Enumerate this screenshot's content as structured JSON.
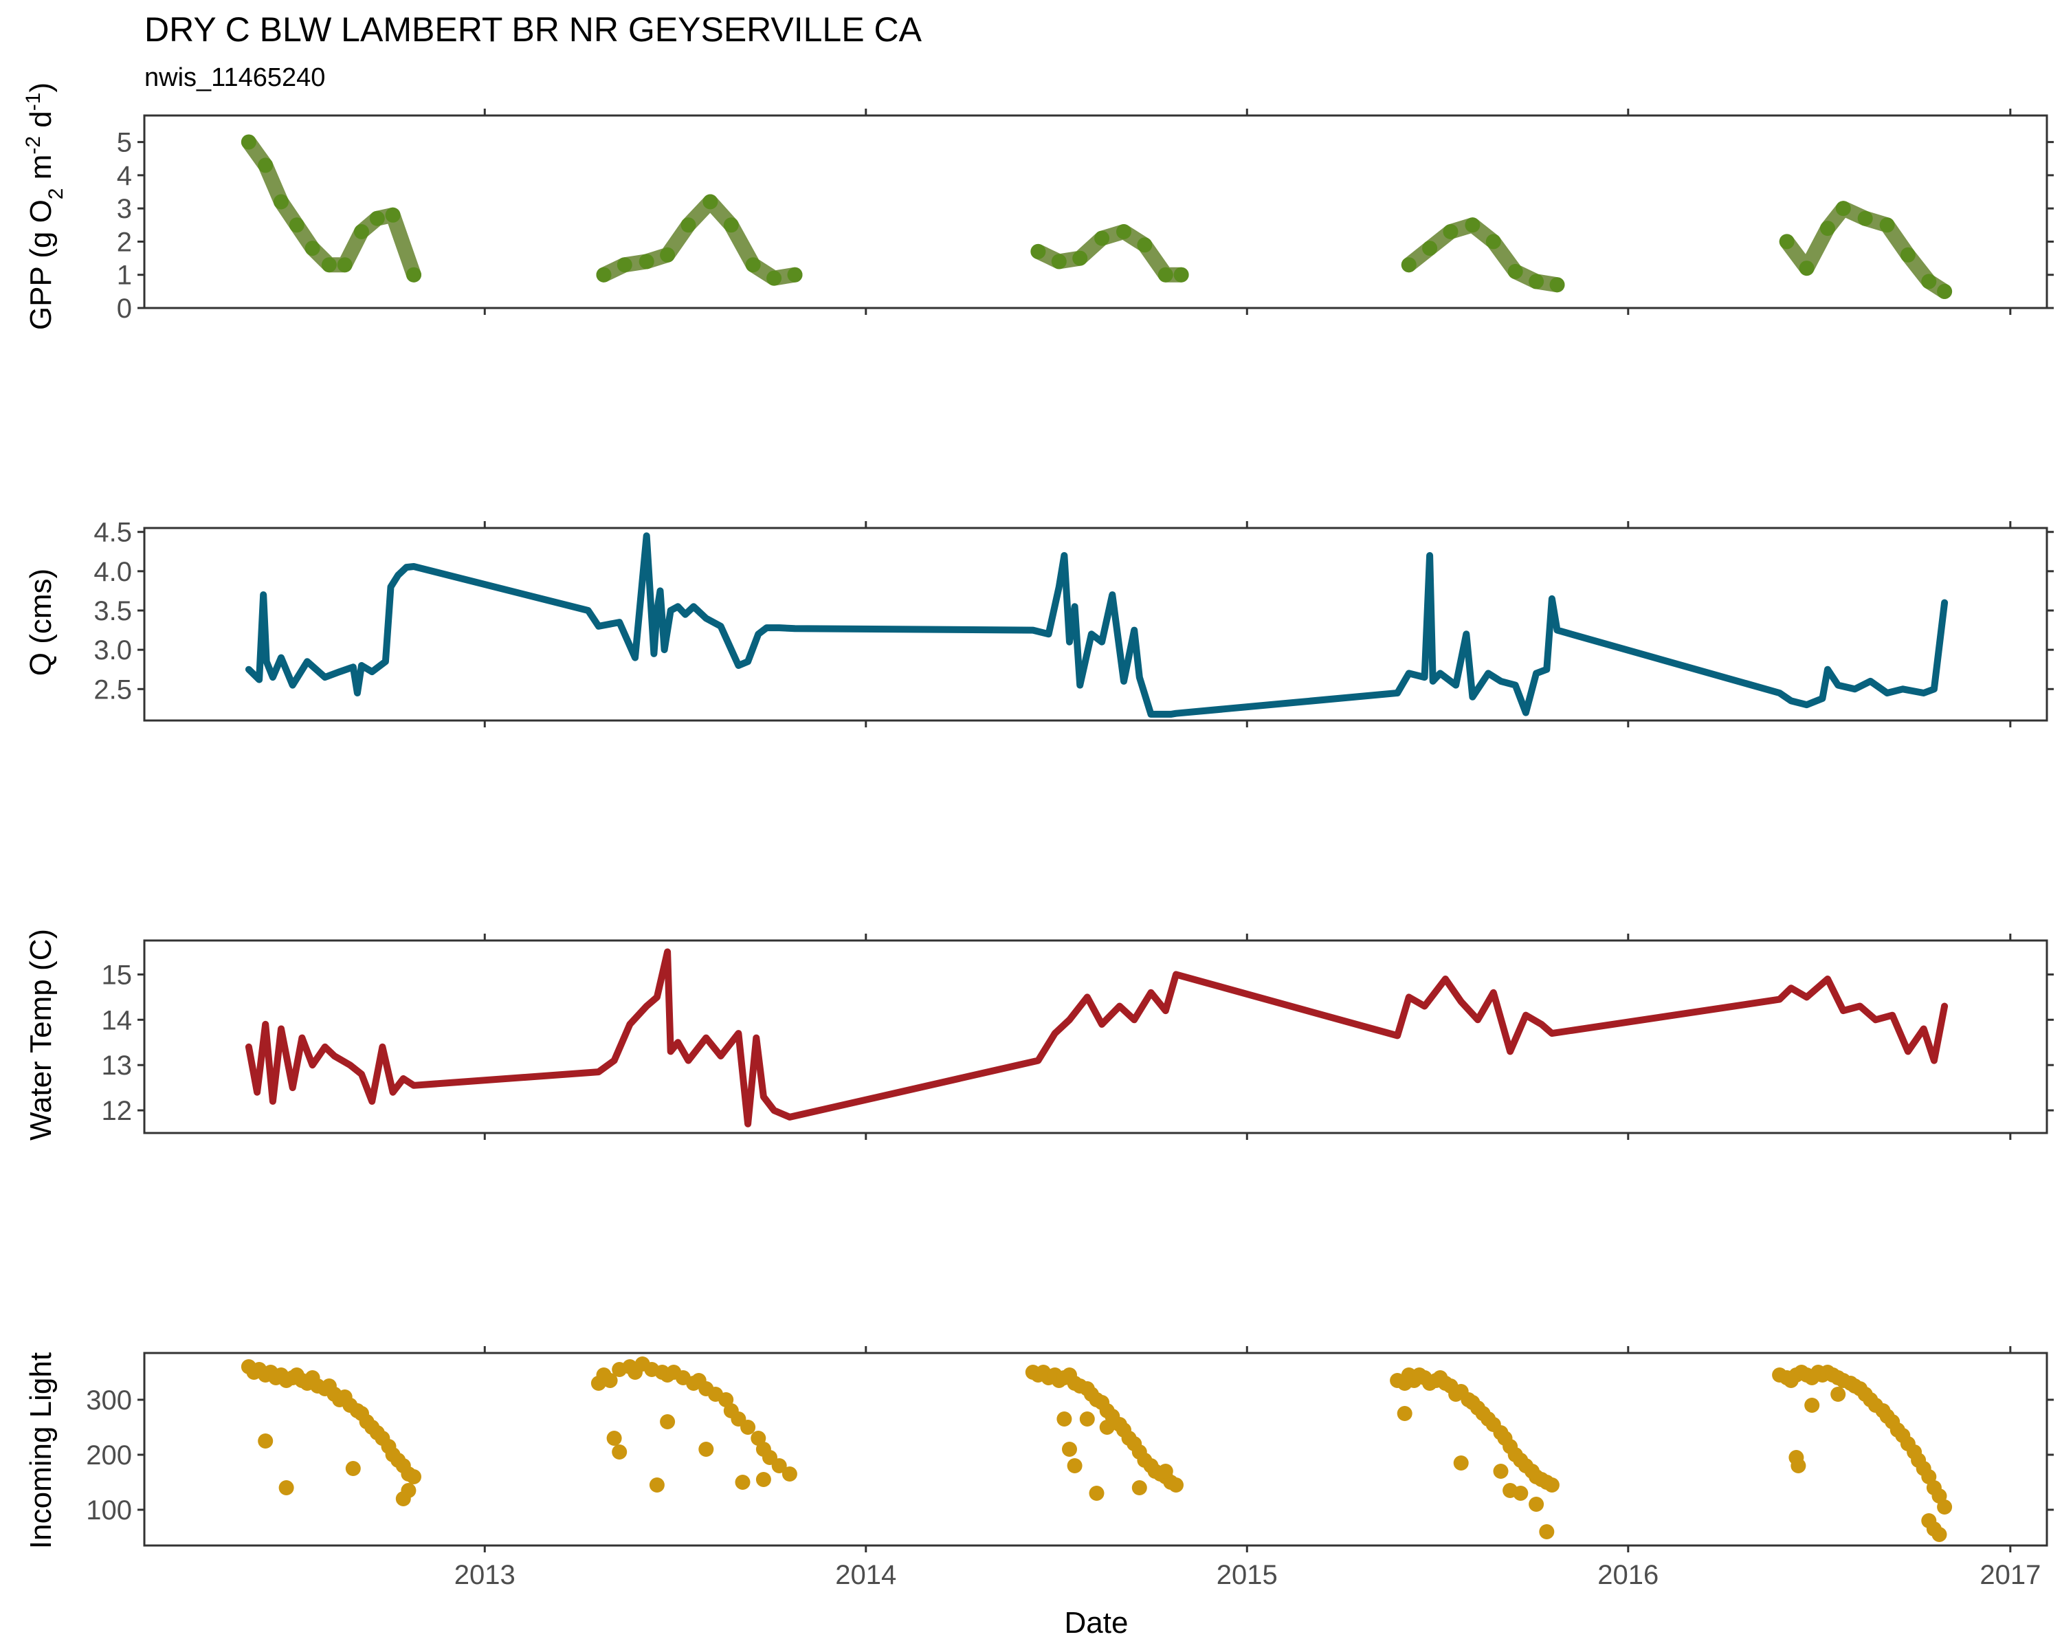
{
  "figure": {
    "title": "DRY C BLW LAMBERT BR NR GEYSERVILLE CA",
    "subtitle": "nwis_11465240",
    "xlabel": "Date",
    "x_ticks": [
      "2013",
      "2014",
      "2015",
      "2016",
      "2017"
    ]
  },
  "chart_data": [
    {
      "type": "scatter",
      "name": "gpp",
      "ylabel": "GPP (g  O2 m-2 d-1)",
      "ylabel_parts": {
        "a": "GPP (g  O",
        "b": "2",
        "c": " m",
        "d": "-2",
        "e": " d",
        "f": "-1",
        "g": ")"
      },
      "ylim": [
        0,
        5.8
      ],
      "y_ticks": [
        0,
        1,
        2,
        3,
        4,
        5
      ],
      "xlim": [
        "2012-02-10",
        "2017-02-05"
      ],
      "grid": false,
      "color": "#5a8c1e",
      "series": [
        {
          "x": [
            "2012-05-20",
            "2012-06-05",
            "2012-06-20",
            "2012-07-05",
            "2012-07-20",
            "2012-08-05",
            "2012-08-20",
            "2012-09-05",
            "2012-09-20",
            "2012-10-05",
            "2012-10-25"
          ],
          "values": [
            5.0,
            4.3,
            3.2,
            2.5,
            1.8,
            1.3,
            1.3,
            2.3,
            2.7,
            2.8,
            1.0
          ]
        },
        {
          "x": [
            "2013-04-25",
            "2013-05-15",
            "2013-06-05",
            "2013-06-25",
            "2013-07-15",
            "2013-08-05",
            "2013-08-25",
            "2013-09-15",
            "2013-10-05",
            "2013-10-25"
          ],
          "values": [
            1.0,
            1.3,
            1.4,
            1.6,
            2.5,
            3.2,
            2.5,
            1.3,
            0.9,
            1.0
          ]
        },
        {
          "x": [
            "2014-06-15",
            "2014-07-05",
            "2014-07-25",
            "2014-08-15",
            "2014-09-05",
            "2014-09-25",
            "2014-10-15",
            "2014-10-30"
          ],
          "values": [
            1.7,
            1.4,
            1.5,
            2.1,
            2.3,
            1.9,
            1.0,
            1.0
          ]
        },
        {
          "x": [
            "2015-06-05",
            "2015-06-25",
            "2015-07-15",
            "2015-08-05",
            "2015-08-25",
            "2015-09-15",
            "2015-10-05",
            "2015-10-25"
          ],
          "values": [
            1.3,
            1.8,
            2.3,
            2.5,
            2.0,
            1.1,
            0.8,
            0.7
          ]
        },
        {
          "x": [
            "2016-06-01",
            "2016-06-20",
            "2016-07-10",
            "2016-07-25",
            "2016-08-15",
            "2016-09-05",
            "2016-09-25",
            "2016-10-15",
            "2016-10-30"
          ],
          "values": [
            2.0,
            1.2,
            2.4,
            3.0,
            2.7,
            2.5,
            1.6,
            0.8,
            0.5
          ]
        }
      ]
    },
    {
      "type": "line",
      "name": "discharge",
      "ylabel": "Q (cms)",
      "ylim": [
        2.1,
        4.55
      ],
      "y_ticks": [
        2.5,
        3.0,
        3.5,
        4.0,
        4.5
      ],
      "y_tick_labels": [
        "2.5",
        "3.0",
        "3.5",
        "4.0",
        "4.5"
      ],
      "xlim": [
        "2012-02-10",
        "2017-02-05"
      ],
      "grid": false,
      "color": "#08617d",
      "series": [
        {
          "x": [
            "2012-05-20",
            "2012-05-30",
            "2012-06-03",
            "2012-06-06",
            "2012-06-12",
            "2012-06-20",
            "2012-07-01",
            "2012-07-15",
            "2012-08-01",
            "2012-08-15",
            "2012-08-28",
            "2012-09-01",
            "2012-09-05",
            "2012-09-15",
            "2012-09-28",
            "2012-10-03",
            "2012-10-10",
            "2012-10-18",
            "2012-10-25",
            "2013-04-10",
            "2013-04-20",
            "2013-05-10",
            "2013-05-25",
            "2013-06-05",
            "2013-06-12",
            "2013-06-15",
            "2013-06-18",
            "2013-06-22",
            "2013-06-28",
            "2013-07-05",
            "2013-07-12",
            "2013-07-20",
            "2013-08-01",
            "2013-08-15",
            "2013-09-01",
            "2013-09-10",
            "2013-09-20",
            "2013-09-28",
            "2013-10-10",
            "2013-10-25",
            "2014-06-10",
            "2014-06-25",
            "2014-07-05",
            "2014-07-10",
            "2014-07-15",
            "2014-07-20",
            "2014-07-25",
            "2014-08-05",
            "2014-08-15",
            "2014-08-25",
            "2014-09-05",
            "2014-09-15",
            "2014-09-20",
            "2014-10-01",
            "2014-10-10",
            "2014-10-20",
            "2014-10-25",
            "2015-05-25",
            "2015-06-05",
            "2015-06-20",
            "2015-06-25",
            "2015-06-28",
            "2015-07-05",
            "2015-07-20",
            "2015-07-30",
            "2015-08-05",
            "2015-08-20",
            "2015-09-01",
            "2015-09-15",
            "2015-09-25",
            "2015-10-05",
            "2015-10-15",
            "2015-10-20",
            "2015-10-25",
            "2016-05-25",
            "2016-06-05",
            "2016-06-20",
            "2016-07-05",
            "2016-07-10",
            "2016-07-20",
            "2016-08-05",
            "2016-08-20",
            "2016-09-05",
            "2016-09-20",
            "2016-10-10",
            "2016-10-20",
            "2016-10-30"
          ],
          "values": [
            2.75,
            2.62,
            3.7,
            2.85,
            2.65,
            2.9,
            2.55,
            2.85,
            2.65,
            2.72,
            2.78,
            2.45,
            2.8,
            2.72,
            2.85,
            3.8,
            3.95,
            4.05,
            4.06,
            3.5,
            3.3,
            3.35,
            2.9,
            4.45,
            2.95,
            3.5,
            3.75,
            3.0,
            3.5,
            3.55,
            3.45,
            3.55,
            3.4,
            3.3,
            2.8,
            2.85,
            3.2,
            3.28,
            3.28,
            3.27,
            3.25,
            3.2,
            3.8,
            4.2,
            3.1,
            3.55,
            2.55,
            3.2,
            3.1,
            3.7,
            2.6,
            3.25,
            2.65,
            2.18,
            2.18,
            2.18,
            2.19,
            2.45,
            2.7,
            2.65,
            4.2,
            2.6,
            2.7,
            2.55,
            3.2,
            2.4,
            2.7,
            2.6,
            2.55,
            2.2,
            2.7,
            2.75,
            3.65,
            3.25,
            2.45,
            2.35,
            2.3,
            2.38,
            2.75,
            2.55,
            2.5,
            2.6,
            2.45,
            2.5,
            2.45,
            2.5,
            3.6
          ]
        }
      ]
    },
    {
      "type": "line",
      "name": "water-temp",
      "ylabel": "Water Temp (C)",
      "ylim": [
        11.5,
        15.75
      ],
      "y_ticks": [
        12,
        13,
        14,
        15
      ],
      "xlim": [
        "2012-02-10",
        "2017-02-05"
      ],
      "grid": false,
      "color": "#a51e23",
      "series": [
        {
          "x": [
            "2012-05-20",
            "2012-05-28",
            "2012-06-05",
            "2012-06-12",
            "2012-06-20",
            "2012-07-01",
            "2012-07-10",
            "2012-07-20",
            "2012-08-01",
            "2012-08-10",
            "2012-08-25",
            "2012-09-05",
            "2012-09-15",
            "2012-09-25",
            "2012-10-05",
            "2012-10-15",
            "2012-10-25",
            "2013-04-20",
            "2013-05-05",
            "2013-05-20",
            "2013-06-05",
            "2013-06-15",
            "2013-06-25",
            "2013-06-28",
            "2013-07-05",
            "2013-07-15",
            "2013-08-01",
            "2013-08-15",
            "2013-09-01",
            "2013-09-10",
            "2013-09-18",
            "2013-09-25",
            "2013-10-05",
            "2013-10-20",
            "2014-06-15",
            "2014-07-01",
            "2014-07-15",
            "2014-08-01",
            "2014-08-15",
            "2014-09-01",
            "2014-09-15",
            "2014-10-01",
            "2014-10-15",
            "2014-10-25",
            "2015-05-25",
            "2015-06-05",
            "2015-06-20",
            "2015-07-10",
            "2015-07-25",
            "2015-08-10",
            "2015-08-25",
            "2015-09-10",
            "2015-09-25",
            "2015-10-10",
            "2015-10-20",
            "2016-05-25",
            "2016-06-05",
            "2016-06-20",
            "2016-07-10",
            "2016-07-25",
            "2016-08-10",
            "2016-08-25",
            "2016-09-10",
            "2016-09-25",
            "2016-10-10",
            "2016-10-20",
            "2016-10-30"
          ],
          "values": [
            13.4,
            12.4,
            13.9,
            12.2,
            13.8,
            12.5,
            13.6,
            13.0,
            13.4,
            13.2,
            13.0,
            12.8,
            12.2,
            13.4,
            12.4,
            12.7,
            12.55,
            12.85,
            13.1,
            13.9,
            14.3,
            14.5,
            15.5,
            13.3,
            13.5,
            13.1,
            13.6,
            13.2,
            13.7,
            11.7,
            13.6,
            12.3,
            12.0,
            11.85,
            13.1,
            13.7,
            14.0,
            14.5,
            13.9,
            14.3,
            14.0,
            14.6,
            14.2,
            15.0,
            13.65,
            14.5,
            14.3,
            14.9,
            14.4,
            14.0,
            14.6,
            13.3,
            14.1,
            13.9,
            13.7,
            14.45,
            14.7,
            14.5,
            14.9,
            14.2,
            14.3,
            14.0,
            14.1,
            13.3,
            13.8,
            13.1,
            14.3
          ]
        }
      ]
    },
    {
      "type": "scatter",
      "name": "incoming-light",
      "ylabel": "Incoming Light",
      "ylim": [
        35,
        385
      ],
      "y_ticks": [
        100,
        200,
        300
      ],
      "xlim": [
        "2012-02-10",
        "2017-02-05"
      ],
      "grid": false,
      "color": "#cc960f",
      "series": [
        {
          "x": [
            "2012-05-20",
            "2012-05-25",
            "2012-05-30",
            "2012-06-05",
            "2012-06-10",
            "2012-06-15",
            "2012-06-20",
            "2012-06-25",
            "2012-07-01",
            "2012-07-05",
            "2012-07-10",
            "2012-07-15",
            "2012-07-20",
            "2012-07-25",
            "2012-08-01",
            "2012-08-05",
            "2012-08-10",
            "2012-08-15",
            "2012-08-20",
            "2012-08-25",
            "2012-09-01",
            "2012-09-05",
            "2012-09-10",
            "2012-09-15",
            "2012-09-20",
            "2012-09-25",
            "2012-10-01",
            "2012-10-05",
            "2012-10-10",
            "2012-10-15",
            "2012-10-20",
            "2012-10-25",
            "2012-06-05",
            "2012-06-25",
            "2012-08-28",
            "2012-10-15",
            "2012-10-20"
          ],
          "values": [
            360,
            350,
            355,
            345,
            350,
            340,
            345,
            335,
            340,
            345,
            335,
            330,
            340,
            325,
            320,
            325,
            310,
            300,
            305,
            290,
            280,
            275,
            260,
            250,
            240,
            230,
            215,
            200,
            190,
            180,
            165,
            160,
            225,
            140,
            175,
            120,
            135
          ]
        },
        {
          "x": [
            "2013-04-20",
            "2013-04-25",
            "2013-05-01",
            "2013-05-10",
            "2013-05-20",
            "2013-05-25",
            "2013-06-01",
            "2013-06-10",
            "2013-06-20",
            "2013-06-25",
            "2013-07-01",
            "2013-07-10",
            "2013-07-20",
            "2013-07-25",
            "2013-08-01",
            "2013-08-10",
            "2013-08-20",
            "2013-08-25",
            "2013-09-01",
            "2013-09-10",
            "2013-09-20",
            "2013-09-25",
            "2013-10-01",
            "2013-10-10",
            "2013-10-20",
            "2013-05-05",
            "2013-05-10",
            "2013-06-15",
            "2013-06-25",
            "2013-08-01",
            "2013-09-05",
            "2013-09-25"
          ],
          "values": [
            330,
            345,
            335,
            355,
            360,
            350,
            365,
            355,
            350,
            345,
            350,
            340,
            330,
            335,
            320,
            310,
            300,
            280,
            265,
            250,
            230,
            210,
            195,
            180,
            165,
            230,
            205,
            145,
            260,
            210,
            150,
            155
          ]
        },
        {
          "x": [
            "2014-06-10",
            "2014-06-15",
            "2014-06-20",
            "2014-06-25",
            "2014-07-01",
            "2014-07-05",
            "2014-07-10",
            "2014-07-15",
            "2014-07-20",
            "2014-07-25",
            "2014-08-01",
            "2014-08-05",
            "2014-08-10",
            "2014-08-15",
            "2014-08-20",
            "2014-08-25",
            "2014-09-01",
            "2014-09-05",
            "2014-09-10",
            "2014-09-15",
            "2014-09-20",
            "2014-09-25",
            "2014-10-01",
            "2014-10-05",
            "2014-10-10",
            "2014-10-15",
            "2014-10-20",
            "2014-10-25",
            "2014-07-10",
            "2014-07-15",
            "2014-07-20",
            "2014-08-01",
            "2014-08-10",
            "2014-08-20",
            "2014-09-20",
            "2014-10-15"
          ],
          "values": [
            350,
            345,
            350,
            340,
            345,
            335,
            340,
            345,
            330,
            325,
            320,
            310,
            300,
            295,
            280,
            270,
            255,
            245,
            230,
            220,
            205,
            190,
            180,
            170,
            165,
            160,
            150,
            145,
            265,
            210,
            180,
            265,
            130,
            250,
            140,
            170
          ]
        },
        {
          "x": [
            "2015-05-25",
            "2015-06-01",
            "2015-06-05",
            "2015-06-10",
            "2015-06-15",
            "2015-06-20",
            "2015-06-25",
            "2015-07-01",
            "2015-07-05",
            "2015-07-10",
            "2015-07-15",
            "2015-07-20",
            "2015-07-25",
            "2015-08-01",
            "2015-08-05",
            "2015-08-10",
            "2015-08-15",
            "2015-08-20",
            "2015-08-25",
            "2015-09-01",
            "2015-09-05",
            "2015-09-10",
            "2015-09-15",
            "2015-09-20",
            "2015-09-25",
            "2015-10-01",
            "2015-10-05",
            "2015-10-10",
            "2015-10-15",
            "2015-10-20",
            "2015-06-01",
            "2015-07-25",
            "2015-09-01",
            "2015-09-10",
            "2015-09-20",
            "2015-10-05",
            "2015-10-15"
          ],
          "values": [
            335,
            330,
            345,
            335,
            345,
            340,
            330,
            335,
            340,
            330,
            325,
            310,
            315,
            300,
            295,
            285,
            275,
            265,
            255,
            240,
            230,
            215,
            200,
            190,
            180,
            170,
            160,
            155,
            150,
            145,
            275,
            185,
            170,
            135,
            130,
            110,
            60
          ]
        },
        {
          "x": [
            "2016-05-25",
            "2016-06-01",
            "2016-06-05",
            "2016-06-10",
            "2016-06-15",
            "2016-06-20",
            "2016-06-25",
            "2016-07-01",
            "2016-07-05",
            "2016-07-10",
            "2016-07-15",
            "2016-07-20",
            "2016-07-25",
            "2016-08-01",
            "2016-08-05",
            "2016-08-10",
            "2016-08-15",
            "2016-08-20",
            "2016-08-25",
            "2016-09-01",
            "2016-09-05",
            "2016-09-10",
            "2016-09-15",
            "2016-09-20",
            "2016-09-25",
            "2016-10-01",
            "2016-10-05",
            "2016-10-10",
            "2016-10-15",
            "2016-10-20",
            "2016-10-25",
            "2016-06-10",
            "2016-06-12",
            "2016-06-25",
            "2016-07-20",
            "2016-10-15",
            "2016-10-20",
            "2016-10-25",
            "2016-10-30"
          ],
          "values": [
            345,
            340,
            335,
            345,
            350,
            345,
            340,
            350,
            345,
            350,
            345,
            340,
            335,
            330,
            325,
            320,
            310,
            300,
            290,
            280,
            270,
            260,
            245,
            235,
            220,
            205,
            190,
            175,
            160,
            140,
            125,
            195,
            180,
            290,
            310,
            80,
            65,
            55,
            105
          ]
        }
      ]
    }
  ]
}
